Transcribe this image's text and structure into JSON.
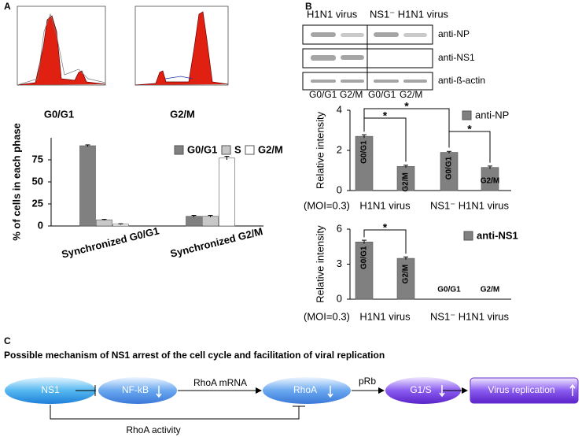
{
  "panel_labels": [
    "A",
    "B",
    "C"
  ],
  "flow_cytometry": {
    "labels": [
      "G0/G1",
      "G2/M"
    ]
  },
  "blot": {
    "columns": [
      "H1N1 virus",
      "NS1⁻ H1N1 virus"
    ],
    "rows": [
      "anti-NP",
      "anti-NS1",
      "anti-ß-actin"
    ],
    "lanes": [
      "G0/G1",
      "G2/M",
      "G0/G1",
      "G2/M"
    ]
  },
  "chart_data": [
    {
      "type": "bar",
      "ylabel": "% of cells in each phase",
      "categories": [
        "Synchronized G0/G1",
        "Synchronized G2/M"
      ],
      "series": [
        {
          "name": "G0/G1",
          "color": "#808080",
          "values": [
            91,
            11
          ],
          "errors": [
            1,
            1
          ]
        },
        {
          "name": "S",
          "color": "#c8c8c8",
          "values": [
            7,
            11
          ],
          "errors": [
            0.5,
            1
          ]
        },
        {
          "name": "G2/M",
          "color": "#ffffff",
          "values": [
            2,
            77
          ],
          "errors": [
            0.5,
            2
          ]
        }
      ],
      "ylim": [
        0,
        100
      ],
      "yticks": [
        0,
        25,
        50,
        75
      ]
    },
    {
      "type": "bar",
      "ylabel": "Relative intensity",
      "x_note": "(MOI=0.3)",
      "categories": [
        "G0/G1",
        "G2/M",
        "G0/G1",
        "G2/M"
      ],
      "groups": [
        "H1N1 virus",
        "NS1⁻ H1N1 virus"
      ],
      "series": [
        {
          "name": "anti-NP",
          "color": "#808080",
          "values": [
            2.7,
            1.2,
            1.9,
            1.15
          ],
          "errors": [
            0.08,
            0.06,
            0.05,
            0.07
          ]
        }
      ],
      "annotations": [
        "*",
        "*",
        "*"
      ],
      "ylim": [
        0,
        4
      ],
      "yticks": [
        0,
        2,
        4
      ]
    },
    {
      "type": "bar",
      "ylabel": "Relative intensity",
      "x_note": "(MOI=0.3)",
      "categories": [
        "G0/G1",
        "G2/M",
        "G0/G1",
        "G2/M"
      ],
      "groups": [
        "H1N1 virus",
        "NS1⁻ H1N1 virus"
      ],
      "series": [
        {
          "name": "anti-NS1",
          "color": "#808080",
          "values": [
            4.9,
            3.5,
            0,
            0
          ],
          "errors": [
            0.15,
            0.12,
            0,
            0
          ]
        }
      ],
      "annotations": [
        "*"
      ],
      "ylim": [
        0,
        6
      ],
      "yticks": [
        0,
        3,
        6
      ]
    }
  ],
  "diagram": {
    "title": "Possible mechanism of NS1 arrest of the cell cycle and facilitation of viral replication",
    "nodes": [
      "NS1",
      "NF-kB",
      "RhoA",
      "G1/S",
      "Virus replication"
    ],
    "edges": [
      "RhoA mRNA",
      "pRb",
      "RhoA activity"
    ]
  }
}
